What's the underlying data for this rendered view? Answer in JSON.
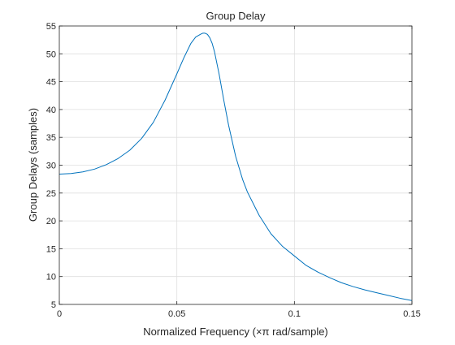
{
  "chart_data": {
    "type": "line",
    "title": "Group Delay",
    "xlabel": "Normalized Frequency (×π rad/sample)",
    "ylabel": "Group Delays (samples)",
    "xlim": [
      0,
      0.15
    ],
    "ylim": [
      5,
      55
    ],
    "xticks": [
      0,
      0.05,
      0.1,
      0.15
    ],
    "xtick_labels": [
      "0",
      "0.05",
      "0.1",
      "0.15"
    ],
    "yticks": [
      5,
      10,
      15,
      20,
      25,
      30,
      35,
      40,
      45,
      50,
      55
    ],
    "ytick_labels": [
      "5",
      "10",
      "15",
      "20",
      "25",
      "30",
      "35",
      "40",
      "45",
      "50",
      "55"
    ],
    "grid": true,
    "line_color": "#0072bd",
    "series": [
      {
        "x": [
          0,
          0.005,
          0.01,
          0.015,
          0.02,
          0.025,
          0.03,
          0.035,
          0.04,
          0.045,
          0.05,
          0.053,
          0.056,
          0.058,
          0.06,
          0.061,
          0.062,
          0.063,
          0.064,
          0.065,
          0.066,
          0.068,
          0.07,
          0.072,
          0.075,
          0.078,
          0.08,
          0.085,
          0.09,
          0.095,
          0.1,
          0.105,
          0.11,
          0.115,
          0.12,
          0.125,
          0.13,
          0.135,
          0.14,
          0.145,
          0.15
        ],
        "y": [
          28.4,
          28.5,
          28.8,
          29.3,
          30.1,
          31.2,
          32.7,
          34.8,
          37.7,
          41.7,
          46.4,
          49.3,
          51.9,
          53.0,
          53.5,
          53.7,
          53.7,
          53.5,
          52.9,
          51.9,
          50.4,
          46.3,
          41.6,
          37.2,
          31.6,
          27.4,
          25.2,
          21.0,
          17.7,
          15.4,
          13.7,
          12.0,
          10.8,
          9.8,
          8.9,
          8.2,
          7.6,
          7.1,
          6.6,
          6.1,
          5.7
        ]
      }
    ]
  }
}
